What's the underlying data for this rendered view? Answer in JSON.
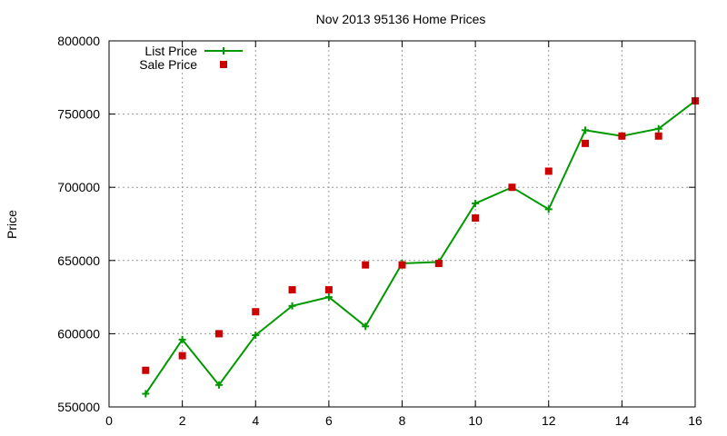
{
  "chart_data": {
    "type": "line",
    "title": "Nov 2013 95136 Home Prices",
    "xlabel": "",
    "ylabel": "Price",
    "xlim": [
      0,
      16
    ],
    "ylim": [
      550000,
      800000
    ],
    "x_ticks": [
      0,
      2,
      4,
      6,
      8,
      10,
      12,
      14,
      16
    ],
    "y_ticks": [
      550000,
      600000,
      650000,
      700000,
      750000,
      800000
    ],
    "grid": true,
    "legend_position": "top-left",
    "series": [
      {
        "name": "List Price",
        "style": "line-with-plus-markers",
        "color": "#009900",
        "x": [
          1,
          2,
          3,
          4,
          5,
          6,
          7,
          8,
          9,
          10,
          11,
          12,
          13,
          14,
          15,
          16
        ],
        "values": [
          559000,
          596000,
          565000,
          599000,
          619000,
          625000,
          605000,
          648000,
          649000,
          689000,
          700000,
          685000,
          739000,
          735000,
          740000,
          759000
        ]
      },
      {
        "name": "Sale Price",
        "style": "square-markers",
        "color": "#cc0000",
        "x": [
          1,
          2,
          3,
          4,
          5,
          6,
          7,
          8,
          9,
          10,
          11,
          12,
          13,
          14,
          15,
          16
        ],
        "values": [
          575000,
          585000,
          600000,
          615000,
          630000,
          630000,
          647000,
          647000,
          648000,
          679000,
          700000,
          711000,
          730000,
          735000,
          735000,
          759000
        ]
      }
    ]
  }
}
